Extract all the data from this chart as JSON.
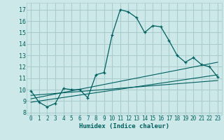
{
  "title": "",
  "xlabel": "Humidex (Indice chaleur)",
  "ylabel": "",
  "bg_color": "#cce8e8",
  "grid_color": "#aacccc",
  "line_color": "#005f5f",
  "xlim": [
    -0.5,
    23.5
  ],
  "ylim": [
    7.8,
    17.6
  ],
  "yticks": [
    8,
    9,
    10,
    11,
    12,
    13,
    14,
    15,
    16,
    17
  ],
  "xticks": [
    0,
    1,
    2,
    3,
    4,
    5,
    6,
    7,
    8,
    9,
    10,
    11,
    12,
    13,
    14,
    15,
    16,
    17,
    18,
    19,
    20,
    21,
    22,
    23
  ],
  "main_x": [
    0,
    1,
    2,
    3,
    4,
    5,
    6,
    7,
    8,
    9,
    10,
    11,
    12,
    13,
    14,
    15,
    16,
    17,
    18,
    19,
    20,
    21,
    22,
    23
  ],
  "main_y": [
    9.9,
    8.9,
    8.5,
    8.8,
    10.1,
    10.0,
    10.0,
    9.3,
    11.3,
    11.5,
    14.8,
    17.0,
    16.8,
    16.3,
    15.0,
    15.6,
    15.5,
    14.3,
    13.0,
    12.4,
    12.8,
    12.2,
    12.0,
    11.1
  ],
  "trend_lines": [
    {
      "x": [
        0,
        23
      ],
      "y": [
        9.2,
        12.4
      ]
    },
    {
      "x": [
        0,
        23
      ],
      "y": [
        8.9,
        11.3
      ]
    },
    {
      "x": [
        0,
        23
      ],
      "y": [
        9.5,
        10.8
      ]
    }
  ]
}
